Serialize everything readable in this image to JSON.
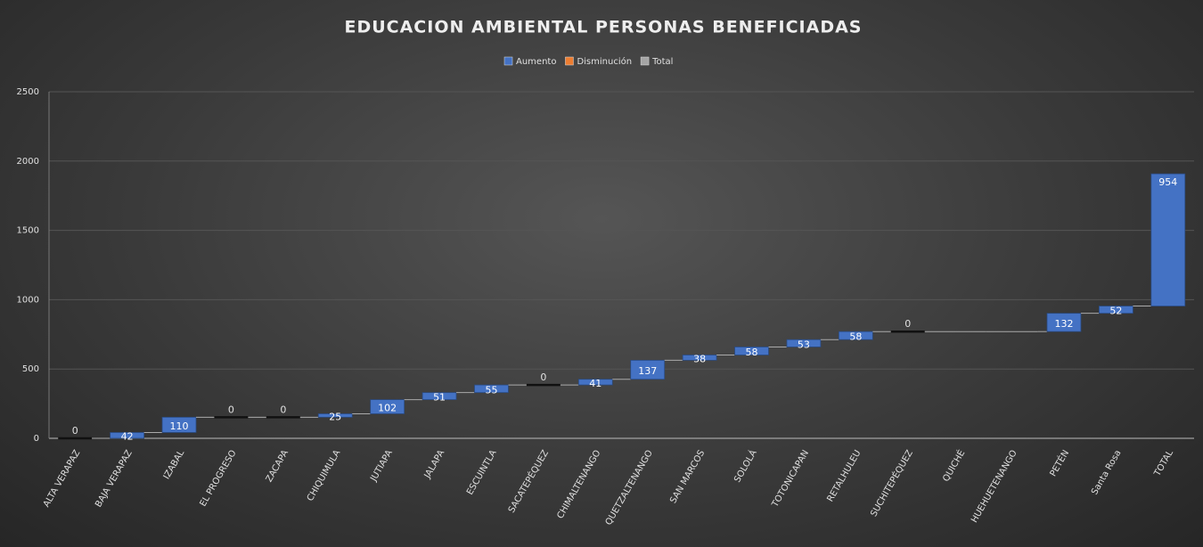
{
  "chart_data": {
    "type": "waterfall",
    "title": "EDUCACION AMBIENTAL PERSONAS BENEFICIADAS",
    "legend": [
      {
        "name": "Aumento",
        "color": "#4472c4"
      },
      {
        "name": "Disminución",
        "color": "#ed7d31"
      },
      {
        "name": "Total",
        "color": "#a5a5a5"
      }
    ],
    "legend_position": "top",
    "categories": [
      "ALTA VERAPAZ",
      "BAJA VERAPAZ",
      "IZABAL",
      "EL PROGRESO",
      "ZACAPA",
      "CHIQUIMULA",
      "JUTIAPA",
      "JALAPA",
      "ESCUINTLA",
      "SACATEPÉQUEZ",
      "CHIMALTENANGO",
      "QUETZALTENANGO",
      "SAN MARCOS",
      "SOLOLÁ",
      "TOTONICAPAN",
      "RETALHULEU",
      "SUCHITEPÉQUEZ",
      "QUICHÉ",
      "HUEHUETENANGO",
      "PETÉN",
      "Santa Rosa",
      "TOTAL"
    ],
    "values": [
      0,
      42,
      110,
      0,
      0,
      25,
      102,
      51,
      55,
      0,
      41,
      137,
      38,
      58,
      53,
      58,
      0,
      null,
      null,
      132,
      52,
      954
    ],
    "ylim": [
      0,
      2500
    ],
    "yticks": [
      0,
      500,
      1000,
      1500,
      2000,
      2500
    ],
    "grid": true
  }
}
